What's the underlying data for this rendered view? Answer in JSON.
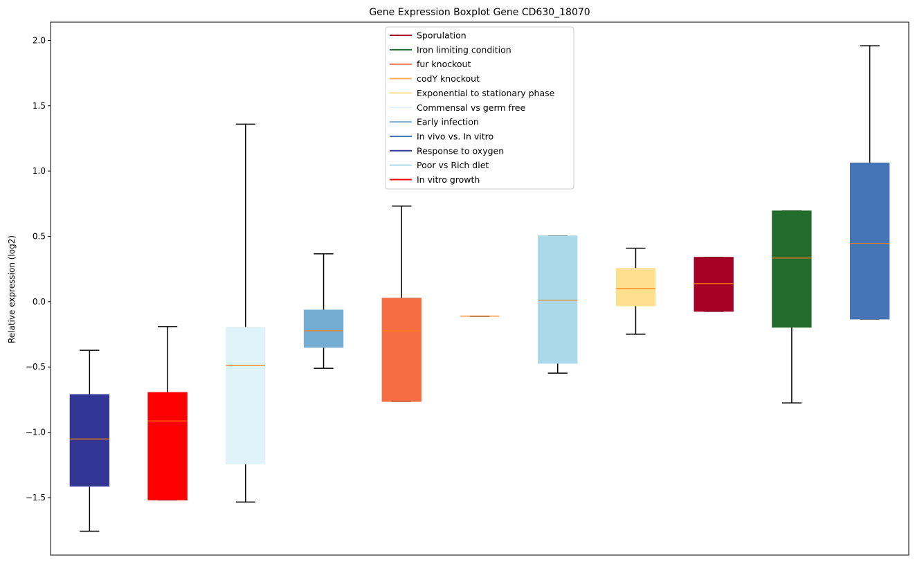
{
  "chart_data": {
    "type": "boxplot",
    "title": "Gene Expression Boxplot Gene CD630_18070",
    "xlabel": "",
    "ylabel": "Relative expression (log2)",
    "ylim": [
      -1.94,
      2.14
    ],
    "yticks": [
      -1.5,
      -1.0,
      -0.5,
      0.0,
      0.5,
      1.0,
      1.5,
      2.0
    ],
    "ytick_labels": [
      "−1.5",
      "−1.0",
      "−0.5",
      "0.0",
      "0.5",
      "1.0",
      "1.5",
      "2.0"
    ],
    "xticks_visible": false,
    "grid": false,
    "legend_position": "top-center",
    "median_color": "#ff7f0e",
    "boxes": [
      {
        "name": "Response to oxygen",
        "color": "#323695",
        "whisker_low": -1.757,
        "q1": -1.412,
        "median": -1.051,
        "q3": -0.711,
        "whisker_high": -0.372
      },
      {
        "name": "In vitro growth",
        "color": "#ff0000",
        "whisker_low": -1.518,
        "q1": -1.518,
        "median": -0.913,
        "q3": -0.695,
        "whisker_high": -0.191
      },
      {
        "name": "Commensal vs germ free",
        "color": "#e0f3f8",
        "whisker_low": -1.534,
        "q1": -1.242,
        "median": -0.488,
        "q3": -0.196,
        "whisker_high": 1.359
      },
      {
        "name": "Early infection",
        "color": "#74add1",
        "whisker_low": -0.51,
        "q1": -0.35,
        "median": -0.223,
        "q3": -0.064,
        "whisker_high": 0.366
      },
      {
        "name": "fur knockout",
        "color": "#f46d43",
        "whisker_low": -0.764,
        "q1": -0.764,
        "median": -0.223,
        "q3": 0.027,
        "whisker_high": 0.732
      },
      {
        "name": "codY knockout",
        "color": "#fdae61",
        "whisker_low": -0.111,
        "q1": -0.111,
        "median": -0.111,
        "q3": -0.111,
        "whisker_high": -0.111
      },
      {
        "name": "Poor vs Rich diet",
        "color": "#abd9e9",
        "whisker_low": -0.547,
        "q1": -0.472,
        "median": 0.011,
        "q3": 0.504,
        "whisker_high": 0.504
      },
      {
        "name": "Exponential to stationary phase",
        "color": "#fee090",
        "whisker_low": -0.249,
        "q1": -0.032,
        "median": 0.101,
        "q3": 0.255,
        "whisker_high": 0.409
      },
      {
        "name": "Sporulation",
        "color": "#a50026",
        "whisker_low": -0.074,
        "q1": -0.074,
        "median": 0.138,
        "q3": 0.34,
        "whisker_high": 0.34
      },
      {
        "name": "Iron limiting condition",
        "color": "#226b2d",
        "whisker_low": -0.775,
        "q1": -0.196,
        "median": 0.334,
        "q3": 0.695,
        "whisker_high": 0.695
      },
      {
        "name": "In vivo vs. In vitro",
        "color": "#4575b4",
        "whisker_low": -0.133,
        "q1": -0.133,
        "median": 0.446,
        "q3": 1.062,
        "whisker_high": 1.959
      }
    ],
    "legend": [
      {
        "label": "Sporulation",
        "color": "#a50026"
      },
      {
        "label": "Iron limiting condition",
        "color": "#226b2d"
      },
      {
        "label": "fur knockout",
        "color": "#f46d43"
      },
      {
        "label": "codY knockout",
        "color": "#fdae61"
      },
      {
        "label": "Exponential to stationary phase",
        "color": "#fee090"
      },
      {
        "label": "Commensal vs germ free",
        "color": "#e0f3f8"
      },
      {
        "label": "Early infection",
        "color": "#74add1"
      },
      {
        "label": "In vivo vs. In vitro",
        "color": "#4575b4"
      },
      {
        "label": "Response to oxygen",
        "color": "#323695"
      },
      {
        "label": "Poor vs Rich diet",
        "color": "#abd9e9"
      },
      {
        "label": "In vitro growth",
        "color": "#ff0000"
      }
    ]
  }
}
